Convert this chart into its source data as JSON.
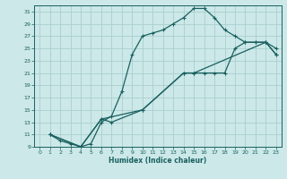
{
  "xlabel": "Humidex (Indice chaleur)",
  "bg_color": "#cce8e8",
  "grid_color": "#aacece",
  "line_color": "#1a6060",
  "xlim_min": -0.5,
  "xlim_max": 23.5,
  "ylim_min": 9,
  "ylim_max": 32,
  "xticks": [
    0,
    1,
    2,
    3,
    4,
    5,
    6,
    7,
    8,
    9,
    10,
    11,
    12,
    13,
    14,
    15,
    16,
    17,
    18,
    19,
    20,
    21,
    22,
    23
  ],
  "yticks": [
    9,
    11,
    13,
    15,
    17,
    19,
    21,
    23,
    25,
    27,
    29,
    31
  ],
  "line1_x": [
    1,
    2,
    3,
    4,
    5,
    6,
    7,
    8,
    9,
    10,
    11,
    12,
    13,
    14,
    15,
    16,
    17,
    18,
    19,
    20,
    21,
    22,
    23
  ],
  "line1_y": [
    11,
    10,
    9.5,
    9,
    9.5,
    13,
    14,
    18,
    24,
    27,
    27.5,
    28,
    29,
    30,
    31.5,
    31.5,
    30,
    28,
    27,
    26,
    26,
    26,
    25
  ],
  "line2_x": [
    1,
    4,
    6,
    7,
    10,
    14,
    15,
    16,
    17,
    18,
    19,
    20,
    21,
    22,
    23
  ],
  "line2_y": [
    11,
    9,
    13.5,
    13,
    15,
    21,
    21,
    21,
    21,
    21,
    25,
    26,
    26,
    26,
    24
  ],
  "line3_x": [
    1,
    4,
    6,
    10,
    14,
    15,
    22,
    23
  ],
  "line3_y": [
    11,
    9,
    13.5,
    15,
    21,
    21,
    26,
    24
  ],
  "tick_fontsize": 4.5,
  "label_fontsize": 5.5,
  "linewidth": 0.9,
  "markersize": 3.0,
  "markeredgewidth": 0.8
}
